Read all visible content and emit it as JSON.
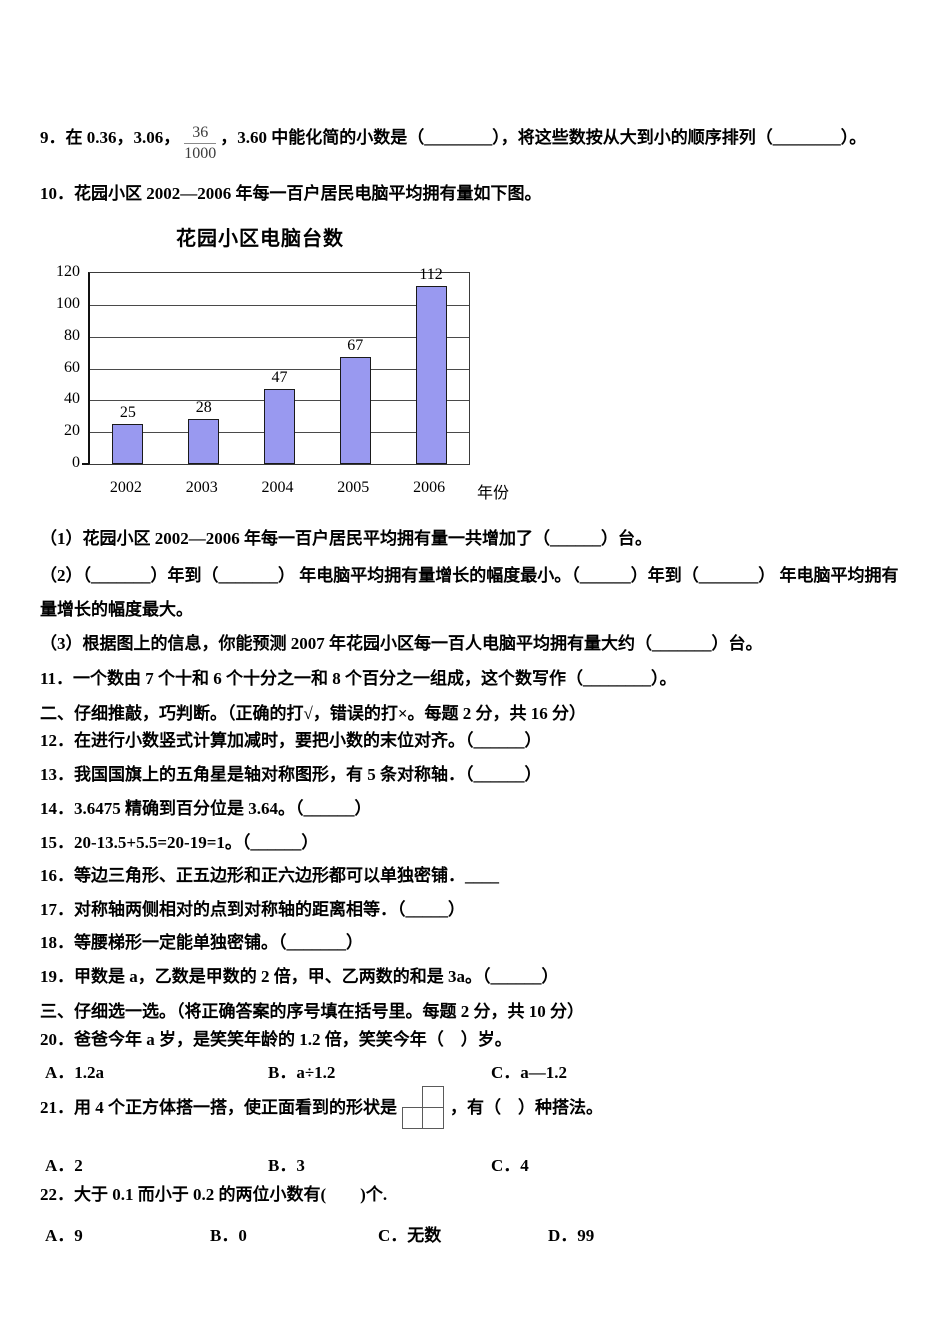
{
  "content": {
    "q9_pre": "9．在 0.36，3.06，",
    "q9_frac_num": "36",
    "q9_frac_den": "1000",
    "q9_post": "，3.60 中能化简的小数是（________），将这些数按从大到小的顺序排列（________）。",
    "q10": "10．花园小区 2002—2006 年每一百户居民电脑平均拥有量如下图。",
    "sub1": "（1）花园小区 2002—2006 年每一百户居民平均拥有量一共增加了（______）台。",
    "sub2a": "（2）（_______）年到（_______） 年电脑平均拥有量增长的幅度最小。（______）年到（_______） 年电脑平均拥有",
    "sub2b": "量增长的幅度最大。",
    "sub3": "（3）根据图上的信息，你能预测 2007 年花园小区每一百人电脑平均拥有量大约（_______）台。",
    "q11": "11．一个数由 7 个十和 6 个十分之一和 8 个百分之一组成，这个数写作（________）。",
    "sec2": "二、仔细推敲，巧判断。（正确的打√，错误的打×。每题 2 分，共 16 分）",
    "q12": "12．在进行小数竖式计算加减时，要把小数的末位对齐。（______）",
    "q13": "13．我国国旗上的五角星是轴对称图形，有 5 条对称轴．（______）",
    "q14": "14．3.6475 精确到百分位是 3.64。（______）",
    "q15": "15．20-13.5+5.5=20-19=1。（______）",
    "q16": "16．等边三角形、正五边形和正六边形都可以单独密铺．____",
    "q17": "17．对称轴两侧相对的点到对称轴的距离相等．（_____）",
    "q18": "18．等腰梯形一定能单独密铺。（_______）",
    "q19": "19．甲数是 a，乙数是甲数的 2 倍，甲、乙两数的和是 3a。（______）",
    "sec3": "三、仔细选一选。（将正确答案的序号填在括号里。每题 2 分，共 10 分）",
    "q20": "20．爸爸今年 a 岁，是笑笑年龄的 1.2 倍，笑笑今年（　）岁。",
    "q20_opts": [
      "A．1.2a",
      "B．a÷1.2",
      "C．a—1.2"
    ],
    "q21_pre": "21．用 4 个正方体搭一搭，使正面看到的形状是",
    "q21_post": "，有（　）种搭法。",
    "q21_opts": [
      "A．2",
      "B．3",
      "C．4"
    ],
    "q22": "22．大于 0.1 而小于 0.2 的两位小数有(　　)个.",
    "q22_opts": [
      "A．9",
      "B．0",
      "C．无数",
      "D．99"
    ]
  },
  "chart_data": {
    "type": "bar",
    "title": "花园小区电脑台数",
    "categories": [
      "2002",
      "2003",
      "2004",
      "2005",
      "2006"
    ],
    "values": [
      25,
      28,
      47,
      67,
      112
    ],
    "xlabel": "年份",
    "ylabel": "",
    "ylim": [
      0,
      120
    ],
    "ytick_step": 20,
    "grid": true,
    "legend": false,
    "bar_color": "#9999f0",
    "bar_border_color": "#1a1a1a",
    "gridline_color": "#4a4a4a"
  }
}
